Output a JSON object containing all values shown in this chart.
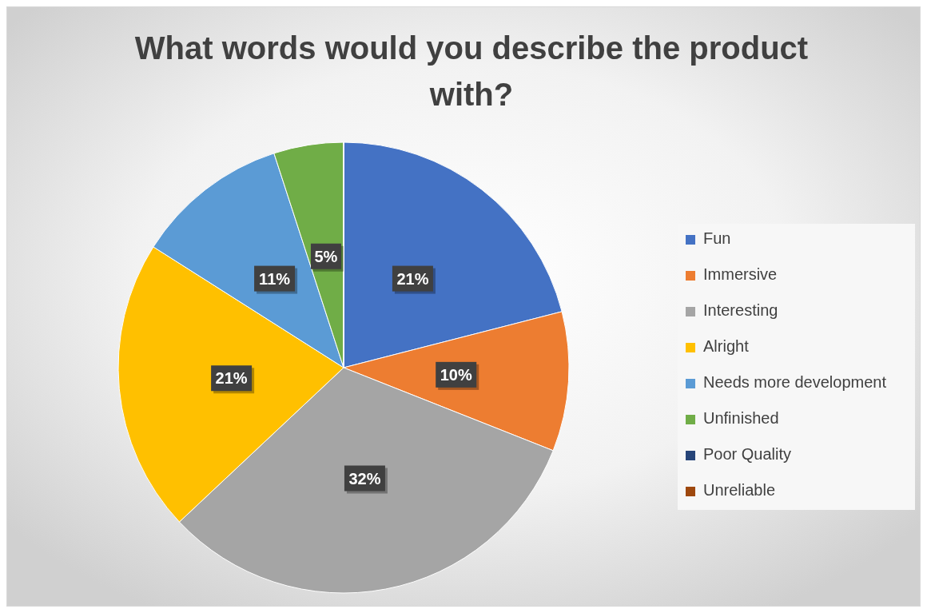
{
  "chart_data": {
    "type": "pie",
    "title": "What words would you describe the product with?",
    "categories": [
      "Fun",
      "Immersive",
      "Interesting",
      "Alright",
      "Needs more development",
      "Unfinished",
      "Poor Quality",
      "Unreliable"
    ],
    "values": [
      21,
      10,
      32,
      21,
      11,
      5,
      0,
      0
    ],
    "colors": [
      "#4472c4",
      "#ed7d31",
      "#a5a5a5",
      "#ffc000",
      "#5b9bd5",
      "#70ad47",
      "#264478",
      "#9e480e"
    ],
    "value_labels": [
      "21%",
      "10%",
      "32%",
      "21%",
      "11%",
      "5%",
      null,
      null
    ],
    "legend": "right"
  }
}
